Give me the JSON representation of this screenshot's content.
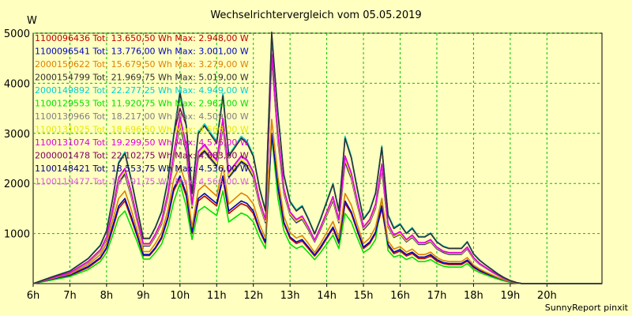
{
  "chart_data": {
    "type": "line",
    "title": "Wechselrichtervergleich vom 05.05.2019",
    "ylabel": "W",
    "footer": "SunnyReport pinxit",
    "ylim": [
      0,
      5000
    ],
    "xlim": [
      6,
      21.5
    ],
    "y_ticks": [
      "1000",
      "2000",
      "3000",
      "4000",
      "5000"
    ],
    "x_ticks": [
      "6h",
      "7h",
      "8h",
      "9h",
      "10h",
      "11h",
      "12h",
      "13h",
      "14h",
      "15h",
      "16h",
      "17h",
      "18h",
      "19h",
      "20h"
    ],
    "grid": true,
    "legend_position": "top-left",
    "x": [
      6.0,
      6.5,
      7.0,
      7.5,
      7.83,
      8.0,
      8.17,
      8.33,
      8.5,
      8.67,
      8.83,
      9.0,
      9.17,
      9.33,
      9.5,
      9.67,
      9.83,
      10.0,
      10.17,
      10.33,
      10.5,
      10.67,
      10.83,
      11.0,
      11.17,
      11.33,
      11.5,
      11.67,
      11.83,
      12.0,
      12.17,
      12.33,
      12.5,
      12.67,
      12.83,
      13.0,
      13.17,
      13.33,
      13.5,
      13.67,
      13.83,
      14.0,
      14.17,
      14.33,
      14.5,
      14.67,
      14.83,
      15.0,
      15.17,
      15.33,
      15.5,
      15.67,
      15.83,
      16.0,
      16.17,
      16.33,
      16.5,
      16.67,
      16.83,
      17.0,
      17.17,
      17.33,
      17.5,
      17.67,
      17.83,
      18.0,
      18.17,
      18.33,
      18.5,
      18.67,
      18.83,
      19.0,
      19.17,
      19.33,
      19.5,
      19.67,
      19.83,
      20.0,
      20.17,
      20.33,
      20.5,
      20.67,
      20.83,
      21.0,
      21.17,
      21.33,
      21.5
    ],
    "series": [
      {
        "label": "1100096436 Tot: 13.650,50 Wh Max: 2.948,00 W",
        "color": "#c00000",
        "max": 2948,
        "values": [
          0,
          80,
          160,
          320,
          500,
          700,
          1100,
          1500,
          1650,
          1300,
          950,
          560,
          560,
          700,
          900,
          1300,
          1850,
          2100,
          1750,
          1000,
          1650,
          1750,
          1650,
          1550,
          2100,
          1400,
          1500,
          1600,
          1550,
          1400,
          1050,
          800,
          2950,
          1900,
          1200,
          900,
          800,
          850,
          700,
          550,
          700,
          900,
          1100,
          800,
          1600,
          1400,
          1050,
          700,
          800,
          1000,
          1500,
          750,
          600,
          650,
          550,
          600,
          500,
          500,
          550,
          450,
          400,
          380,
          380,
          380,
          450,
          320,
          250,
          200,
          150,
          100,
          60,
          30,
          10,
          0,
          0,
          0,
          0,
          0,
          0,
          0,
          0,
          0,
          0,
          0,
          0,
          0,
          0
        ]
      },
      {
        "label": "1100096541 Tot: 13.776,00 Wh Max: 3.001,00 W",
        "color": "#0000c0",
        "max": 3001,
        "values": [
          0,
          90,
          170,
          340,
          520,
          720,
          1150,
          1550,
          1700,
          1350,
          980,
          580,
          580,
          720,
          930,
          1330,
          1900,
          2150,
          1800,
          1030,
          1700,
          1800,
          1700,
          1600,
          2150,
          1450,
          1550,
          1650,
          1600,
          1450,
          1080,
          830,
          3000,
          1950,
          1230,
          930,
          830,
          880,
          730,
          570,
          730,
          930,
          1130,
          830,
          1650,
          1430,
          1080,
          730,
          830,
          1030,
          1550,
          780,
          630,
          680,
          580,
          630,
          530,
          530,
          580,
          480,
          420,
          400,
          400,
          400,
          470,
          340,
          260,
          210,
          160,
          110,
          70,
          35,
          12,
          0,
          0,
          0,
          0,
          0,
          0,
          0,
          0,
          0,
          0,
          0,
          0,
          0,
          0
        ]
      },
      {
        "label": "2000150622 Tot: 15.679,50 Wh Max: 3.279,00 W",
        "color": "#e08000",
        "max": 3279,
        "values": [
          0,
          100,
          190,
          380,
          580,
          800,
          1270,
          1700,
          1850,
          1480,
          1070,
          640,
          640,
          800,
          1020,
          1460,
          2080,
          2350,
          1970,
          1130,
          1860,
          1970,
          1860,
          1750,
          2350,
          1590,
          1700,
          1810,
          1750,
          1590,
          1180,
          910,
          3280,
          2130,
          1350,
          1020,
          910,
          960,
          800,
          620,
          800,
          1020,
          1240,
          910,
          1800,
          1570,
          1180,
          800,
          910,
          1130,
          1700,
          850,
          690,
          740,
          630,
          690,
          580,
          580,
          630,
          520,
          460,
          440,
          440,
          440,
          520,
          370,
          290,
          230,
          175,
          120,
          75,
          38,
          13,
          0,
          0,
          0,
          0,
          0,
          0,
          0,
          0,
          0,
          0,
          0,
          0,
          0,
          0
        ]
      },
      {
        "label": "2000154799 Tot: 21.969,75 Wh Max: 5.019,00 W",
        "color": "#303030",
        "max": 5019,
        "values": [
          0,
          130,
          250,
          500,
          760,
          1050,
          1700,
          2400,
          2600,
          2080,
          1500,
          900,
          900,
          1120,
          1430,
          2050,
          2950,
          3800,
          3150,
          1800,
          3000,
          3150,
          2980,
          2800,
          3750,
          2540,
          2720,
          2900,
          2800,
          2540,
          1890,
          1450,
          5020,
          3400,
          2160,
          1630,
          1450,
          1540,
          1280,
          990,
          1280,
          1630,
          1980,
          1450,
          2900,
          2510,
          1890,
          1280,
          1450,
          1800,
          2720,
          1360,
          1100,
          1180,
          1000,
          1100,
          930,
          930,
          1000,
          830,
          740,
          700,
          700,
          700,
          830,
          590,
          460,
          370,
          280,
          190,
          120,
          60,
          20,
          0,
          0,
          0,
          0,
          0,
          0,
          0,
          0,
          0,
          0,
          0,
          0,
          0,
          0
        ]
      },
      {
        "label": "2000149892 Tot: 22.277,25 Wh Max: 4.949,00 W",
        "color": "#00d0d0",
        "max": 4949,
        "values": [
          0,
          132,
          255,
          505,
          770,
          1060,
          1720,
          2430,
          2630,
          2100,
          1520,
          910,
          910,
          1130,
          1450,
          2080,
          2990,
          3850,
          3190,
          1820,
          3040,
          3190,
          3020,
          2840,
          3800,
          2570,
          2750,
          2940,
          2840,
          2570,
          1910,
          1470,
          4950,
          3440,
          2190,
          1650,
          1470,
          1560,
          1300,
          1000,
          1300,
          1650,
          2000,
          1470,
          2940,
          2540,
          1910,
          1300,
          1470,
          1820,
          2750,
          1380,
          1120,
          1200,
          1010,
          1120,
          940,
          940,
          1010,
          840,
          750,
          710,
          710,
          710,
          840,
          600,
          470,
          375,
          285,
          195,
          122,
          61,
          20,
          0,
          0,
          0,
          0,
          0,
          0,
          0,
          0,
          0,
          0,
          0,
          0,
          0,
          0
        ]
      },
      {
        "label": "1100129553 Tot: 11.920,75 Wh Max: 2.962,00 W",
        "color": "#00e000",
        "max": 2962,
        "values": [
          0,
          70,
          140,
          280,
          440,
          620,
          970,
          1320,
          1450,
          1140,
          840,
          490,
          490,
          620,
          790,
          1140,
          1630,
          2000,
          1550,
          880,
          1450,
          1540,
          1450,
          1360,
          1850,
          1230,
          1320,
          1410,
          1360,
          1230,
          920,
          700,
          2960,
          1700,
          1060,
          790,
          700,
          750,
          620,
          480,
          620,
          790,
          970,
          700,
          1400,
          1230,
          920,
          620,
          700,
          880,
          1700,
          660,
          530,
          570,
          480,
          530,
          440,
          440,
          480,
          400,
          350,
          330,
          330,
          330,
          400,
          280,
          220,
          175,
          130,
          90,
          53,
          26,
          9,
          0,
          0,
          0,
          0,
          0,
          0,
          0,
          0,
          0,
          0,
          0,
          0,
          0,
          0
        ]
      },
      {
        "label": "1100130966 Tot: 18.217,00 Wh Max: 4.509,00 W",
        "color": "#808080",
        "max": 4509,
        "values": [
          0,
          110,
          210,
          420,
          640,
          880,
          1420,
          2000,
          2170,
          1740,
          1250,
          750,
          750,
          940,
          1190,
          1710,
          2460,
          3150,
          2620,
          1500,
          2500,
          2620,
          2480,
          2330,
          3120,
          2110,
          2260,
          2410,
          2330,
          2110,
          1570,
          1210,
          4510,
          2830,
          1800,
          1360,
          1210,
          1280,
          1070,
          830,
          1070,
          1360,
          1650,
          1210,
          2410,
          2090,
          1570,
          1070,
          1210,
          1500,
          2260,
          1130,
          920,
          980,
          830,
          920,
          780,
          780,
          830,
          690,
          620,
          580,
          580,
          580,
          690,
          490,
          380,
          310,
          230,
          160,
          100,
          50,
          17,
          0,
          0,
          0,
          0,
          0,
          0,
          0,
          0,
          0,
          0,
          0,
          0,
          0,
          0
        ]
      },
      {
        "label": "1100131025 Tot: 18.696,50 Wh Max: 4.566,00 W",
        "color": "#e8e800",
        "max": 4566,
        "values": [
          0,
          112,
          215,
          430,
          655,
          900,
          1460,
          2050,
          2230,
          1780,
          1280,
          770,
          770,
          960,
          1220,
          1750,
          2520,
          3230,
          2690,
          1540,
          2560,
          2690,
          2540,
          2390,
          3200,
          2160,
          2320,
          2470,
          2390,
          2160,
          1610,
          1240,
          4570,
          2900,
          1840,
          1390,
          1240,
          1310,
          1100,
          850,
          1100,
          1390,
          1690,
          1240,
          2470,
          2140,
          1610,
          1100,
          1240,
          1540,
          2320,
          1160,
          940,
          1000,
          850,
          940,
          800,
          800,
          850,
          710,
          640,
          600,
          600,
          600,
          710,
          500,
          390,
          315,
          235,
          165,
          102,
          51,
          17,
          0,
          0,
          0,
          0,
          0,
          0,
          0,
          0,
          0,
          0,
          0,
          0,
          0,
          0
        ]
      },
      {
        "label": "1100131074 Tot: 19.299,50 Wh Max: 4.576,00 W",
        "color": "#e000e0",
        "max": 4576,
        "values": [
          0,
          115,
          220,
          445,
          675,
          930,
          1500,
          2120,
          2300,
          1840,
          1320,
          800,
          800,
          990,
          1260,
          1810,
          2600,
          3330,
          2780,
          1590,
          2640,
          2780,
          2620,
          2470,
          3300,
          2230,
          2390,
          2550,
          2470,
          2230,
          1660,
          1280,
          4580,
          3000,
          1900,
          1430,
          1280,
          1350,
          1130,
          870,
          1130,
          1430,
          1740,
          1280,
          2550,
          2210,
          1660,
          1130,
          1280,
          1590,
          2390,
          1200,
          970,
          1040,
          880,
          970,
          820,
          820,
          880,
          730,
          650,
          620,
          620,
          620,
          730,
          520,
          400,
          325,
          245,
          170,
          105,
          53,
          18,
          0,
          0,
          0,
          0,
          0,
          0,
          0,
          0,
          0,
          0,
          0,
          0,
          0,
          0
        ]
      },
      {
        "label": "2000001478 Tot: 22.102,75 Wh Max: 4.883,00 W",
        "color": "#800060",
        "max": 4883,
        "values": [
          0,
          131,
          252,
          502,
          765,
          1055,
          1710,
          2420,
          2620,
          2090,
          1510,
          905,
          905,
          1125,
          1440,
          2065,
          2970,
          3500,
          3170,
          1810,
          3020,
          3170,
          3000,
          2820,
          3770,
          2550,
          2730,
          2920,
          2820,
          2550,
          1900,
          1460,
          4880,
          3420,
          2170,
          1640,
          1460,
          1550,
          1290,
          995,
          1290,
          1640,
          1990,
          1460,
          2920,
          2520,
          1900,
          1290,
          1460,
          1810,
          2730,
          1370,
          1110,
          1190,
          1005,
          1110,
          935,
          935,
          1005,
          835,
          745,
          705,
          705,
          705,
          835,
          595,
          465,
          372,
          282,
          192,
          121,
          60,
          20,
          0,
          0,
          0,
          0,
          0,
          0,
          0,
          0,
          0,
          0,
          0,
          0,
          0,
          0
        ]
      },
      {
        "label": "1100148421 Tot: 18.553,75 Wh Max: 4.536,00 W",
        "color": "#000080",
        "max": 4536,
        "values": [
          0,
          111,
          212,
          425,
          648,
          890,
          1440,
          2030,
          2200,
          1760,
          1265,
          760,
          760,
          950,
          1205,
          1730,
          2490,
          3190,
          2650,
          1520,
          2530,
          2650,
          2510,
          2360,
          3160,
          2130,
          2290,
          2440,
          2360,
          2130,
          1590,
          1225,
          4540,
          2870,
          1820,
          1375,
          1225,
          1295,
          1085,
          840,
          1085,
          1375,
          1670,
          1225,
          2440,
          2115,
          1590,
          1085,
          1225,
          1520,
          2290,
          1145,
          930,
          990,
          840,
          930,
          790,
          790,
          840,
          700,
          630,
          590,
          590,
          590,
          700,
          495,
          385,
          312,
          232,
          162,
          101,
          50,
          17,
          0,
          0,
          0,
          0,
          0,
          0,
          0,
          0,
          0,
          0,
          0,
          0,
          0,
          0
        ]
      },
      {
        "label": "1100119477 Tot: 19.191,75 Wh Max: 4.566,00 W",
        "color": "#e060e0",
        "max": 4566,
        "values": [
          0,
          114,
          218,
          440,
          670,
          920,
          1490,
          2100,
          2280,
          1820,
          1310,
          790,
          790,
          980,
          1250,
          1790,
          2580,
          3300,
          2750,
          1570,
          2620,
          2750,
          2600,
          2450,
          3270,
          2210,
          2370,
          2530,
          2450,
          2210,
          1650,
          1270,
          4570,
          2970,
          1880,
          1420,
          1270,
          1340,
          1120,
          860,
          1120,
          1420,
          1720,
          1270,
          2530,
          2190,
          1650,
          1120,
          1270,
          1570,
          2370,
          1190,
          960,
          1030,
          870,
          960,
          810,
          810,
          870,
          720,
          645,
          615,
          615,
          615,
          720,
          515,
          395,
          320,
          240,
          168,
          104,
          52,
          18,
          0,
          0,
          0,
          0,
          0,
          0,
          0,
          0,
          0,
          0,
          0,
          0,
          0,
          0
        ]
      }
    ]
  }
}
